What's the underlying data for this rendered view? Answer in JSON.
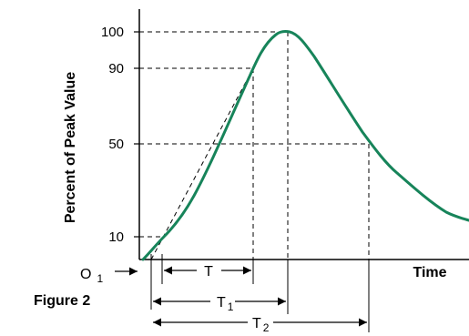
{
  "figure": {
    "caption": "Figure 2",
    "ylabel": "Percent of Peak Value",
    "xlabel": "Time",
    "curve_color": "#17845a",
    "y_ticks": [
      "100",
      "90",
      "50",
      "10"
    ],
    "origin": {
      "main": "O",
      "sub": "1"
    },
    "intervals": {
      "t": {
        "main": "T"
      },
      "t1": {
        "main": "T",
        "sub": "1"
      },
      "t2": {
        "main": "T",
        "sub": "2"
      }
    }
  }
}
